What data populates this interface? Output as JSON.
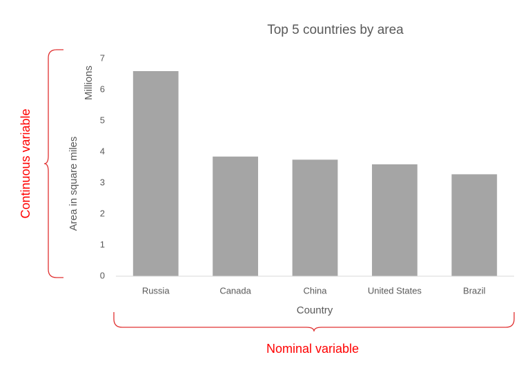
{
  "chart_data": {
    "type": "bar",
    "title": "Top 5 countries by area",
    "x_label": "Country",
    "y_label": "Area in square miles",
    "y_unit": "Millions",
    "categories": [
      "Russia",
      "Canada",
      "China",
      "United States",
      "Brazil"
    ],
    "values": [
      6.6,
      3.85,
      3.75,
      3.6,
      3.28
    ],
    "color": "#a5a5a5",
    "ylim": [
      0,
      7
    ],
    "yticks": [
      0,
      1,
      2,
      3,
      4,
      5,
      6,
      7
    ],
    "grid": false,
    "annotations": {
      "y_axis": "Continuous variable",
      "x_axis": "Nominal variable"
    }
  }
}
